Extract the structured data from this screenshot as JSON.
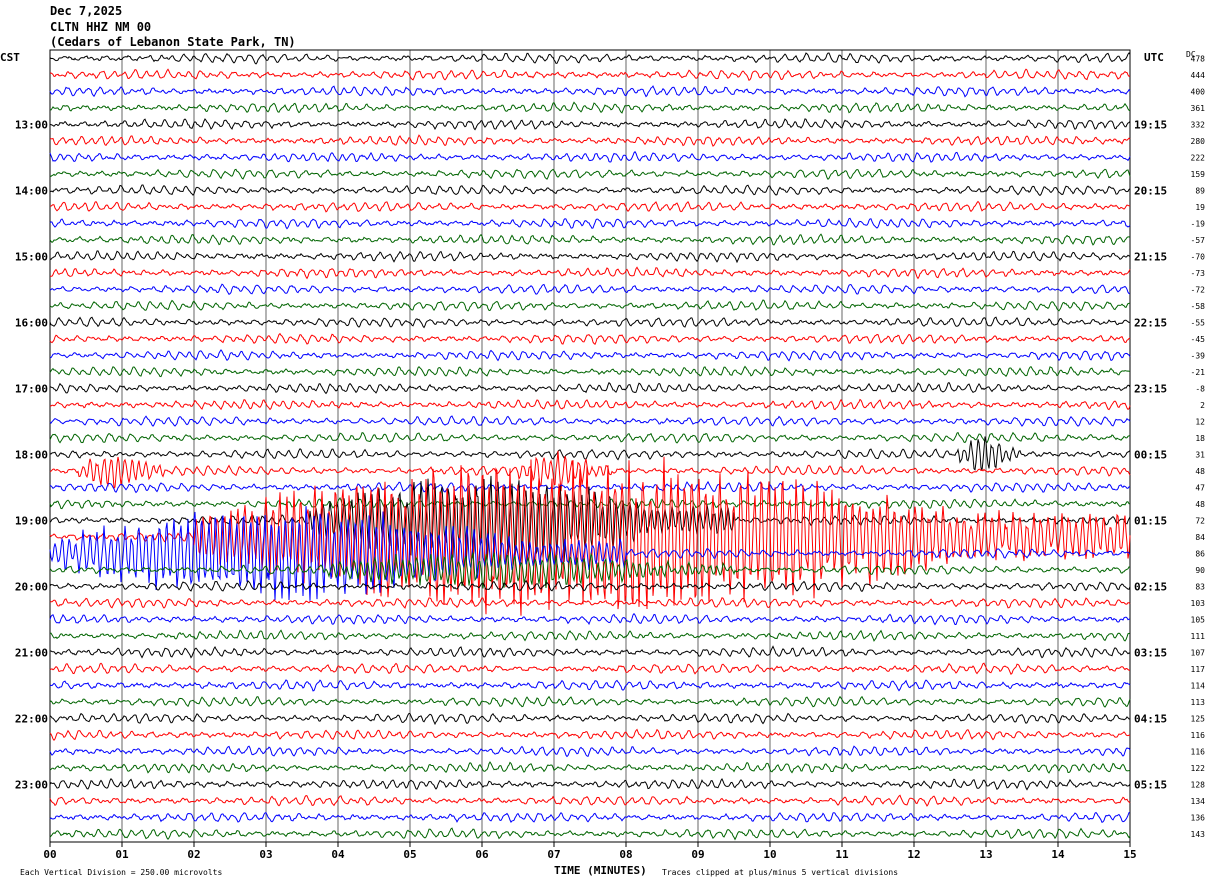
{
  "header": {
    "date": "Dec 7,2025",
    "station": "CLTN HHZ NM 00",
    "location": "(Cedars of Lebanon State Park, TN)"
  },
  "left_axis_label": "CST",
  "right_axis_label": "UTC",
  "dc_label": "DC",
  "footer": {
    "scale_note": "Each Vertical Division =  250.00 microvolts",
    "xlabel": "TIME (MINUTES)",
    "clip_note": "Traces clipped at plus/minus 5 vertical divisions"
  },
  "colors": {
    "black": "#000000",
    "red": "#ff0000",
    "blue": "#0000ff",
    "green": "#006400",
    "grid": "#000000"
  },
  "chart_data": {
    "type": "line",
    "title": "",
    "xlabel": "TIME (MINUTES)",
    "xlim": [
      0,
      15
    ],
    "x_ticks": [
      "00",
      "01",
      "02",
      "03",
      "04",
      "05",
      "06",
      "07",
      "08",
      "09",
      "10",
      "11",
      "12",
      "13",
      "14",
      "15"
    ],
    "row_minutes": 15,
    "color_cycle": [
      "black",
      "red",
      "blue",
      "green"
    ],
    "cst_hour_labels": [
      "13:00",
      "14:00",
      "15:00",
      "16:00",
      "17:00",
      "18:00",
      "19:00",
      "20:00",
      "21:00",
      "22:00",
      "23:00"
    ],
    "utc_hour_labels": [
      "19:15",
      "20:15",
      "21:15",
      "22:15",
      "23:15",
      "00:15",
      "01:15",
      "02:15",
      "03:15",
      "04:15",
      "05:15"
    ],
    "dc_offsets": [
      478,
      444,
      400,
      361,
      332,
      280,
      222,
      159,
      89,
      19,
      -19,
      -57,
      -70,
      -73,
      -72,
      -58,
      -55,
      -45,
      -39,
      -21,
      -8,
      2,
      12,
      18,
      31,
      48,
      47,
      48,
      72,
      84,
      86,
      90,
      83,
      103,
      105,
      111,
      107,
      117,
      114,
      113,
      125,
      116,
      116,
      122,
      128,
      134,
      136,
      143
    ],
    "events": [
      {
        "row": 24,
        "start_min": 12.6,
        "end_min": 13.5,
        "amplitude": "moderate"
      },
      {
        "row": 25,
        "start_min": 0.4,
        "end_min": 1.6,
        "amplitude": "moderate"
      },
      {
        "row": 25,
        "start_min": 6.5,
        "end_min": 7.8,
        "amplitude": "moderate"
      },
      {
        "row": 28,
        "start_min": 3.6,
        "end_min": 9.5,
        "amplitude": "large"
      },
      {
        "row": 29,
        "start_min": 2.0,
        "end_min": 15.0,
        "amplitude": "clipped"
      },
      {
        "row": 30,
        "start_min": 0.0,
        "end_min": 8.0,
        "amplitude": "large"
      },
      {
        "row": 31,
        "start_min": 3.8,
        "end_min": 9.5,
        "amplitude": "moderate"
      }
    ]
  }
}
